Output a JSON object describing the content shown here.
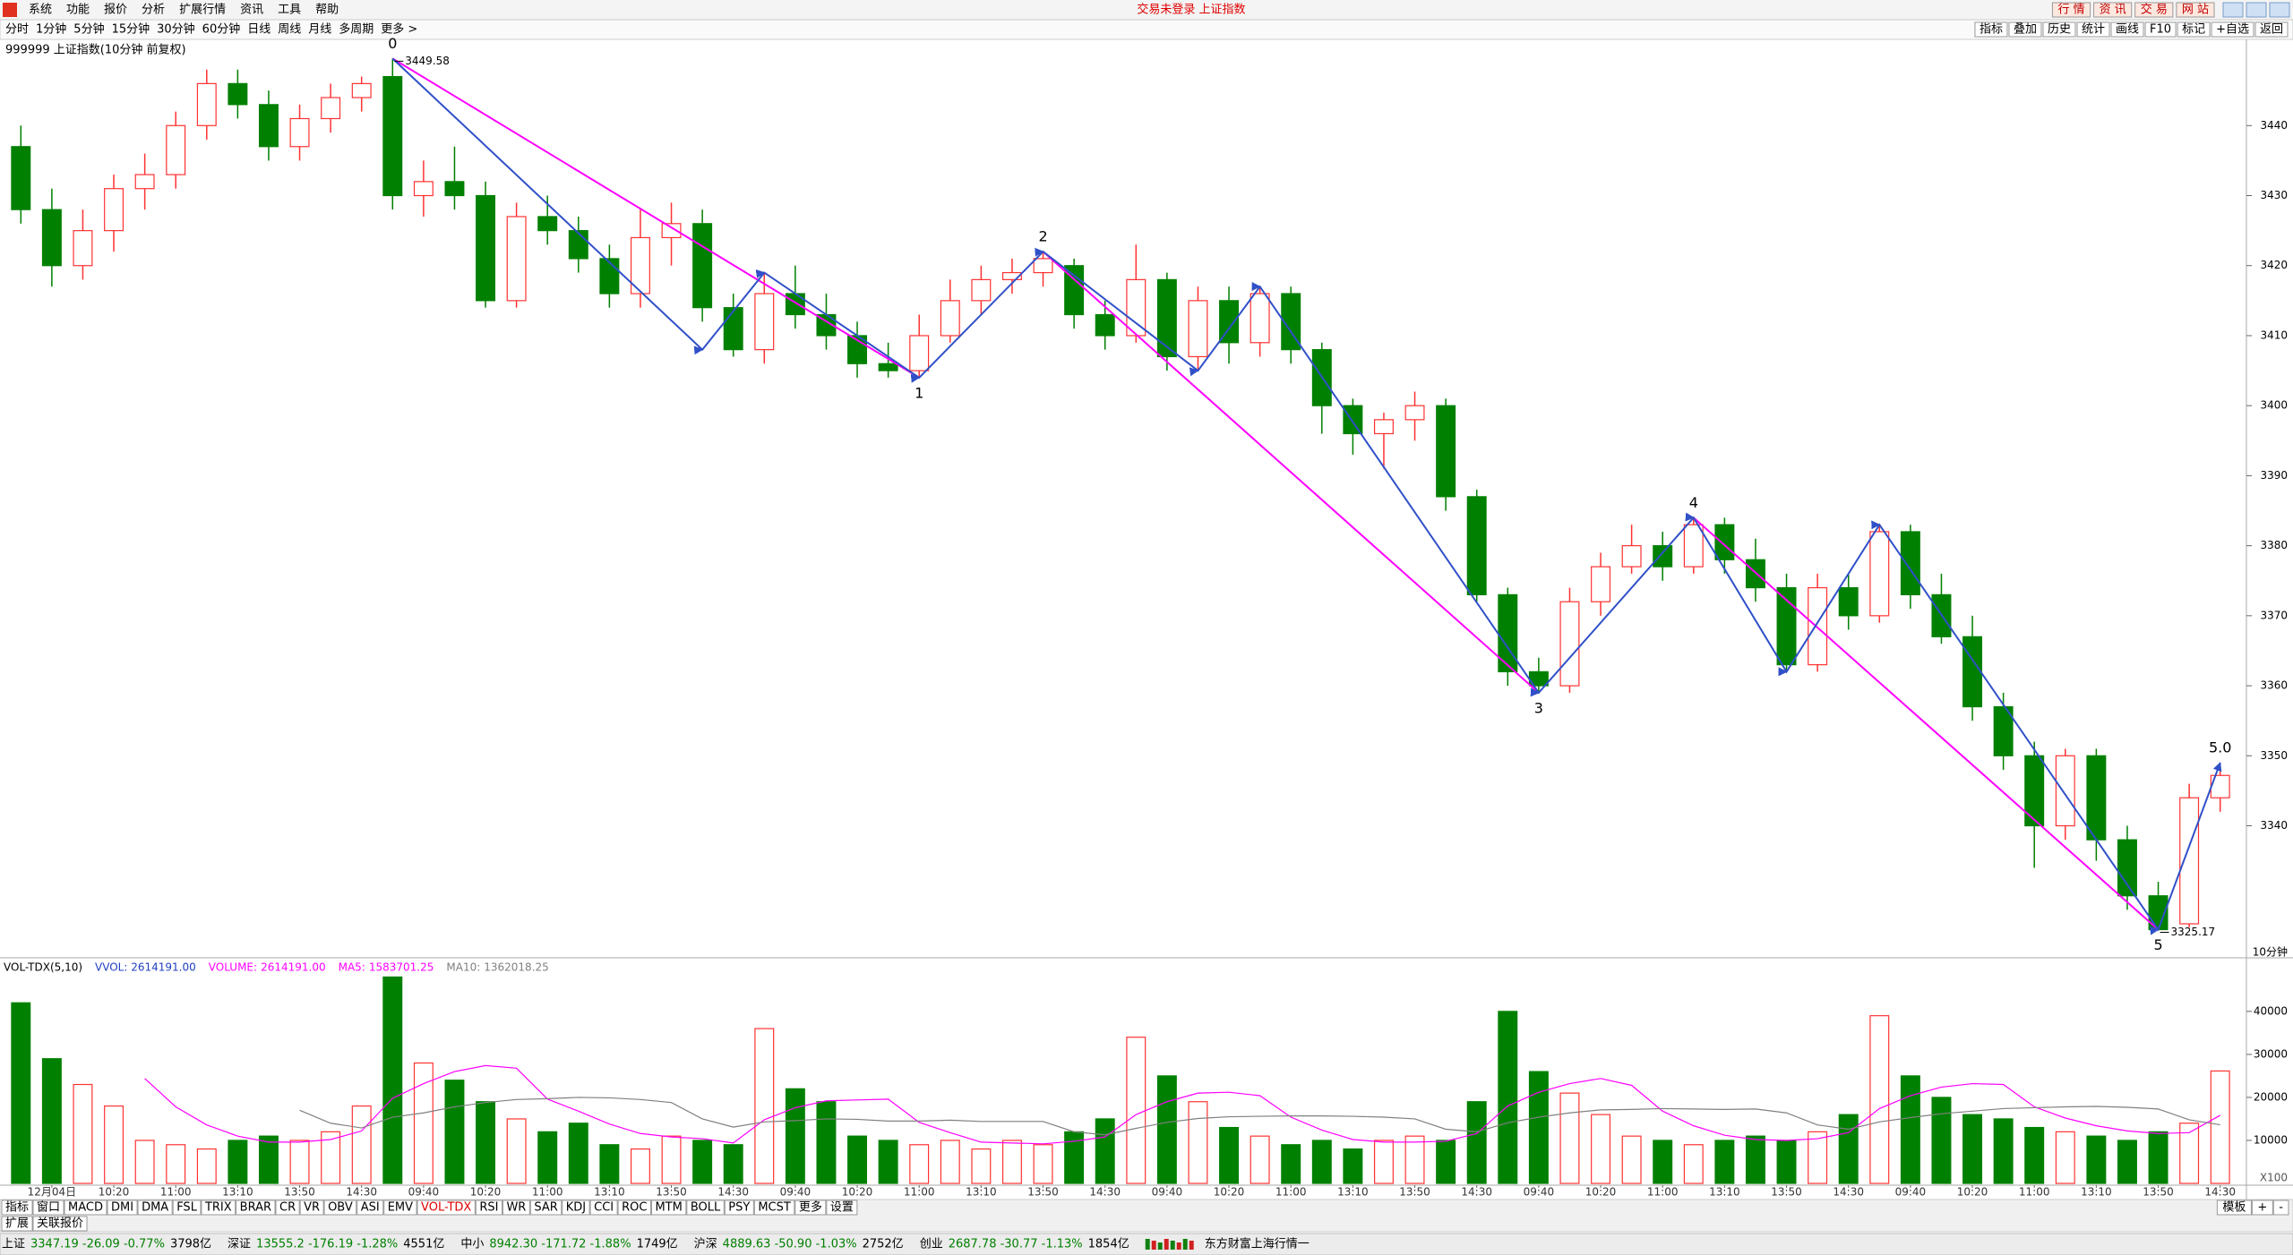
{
  "menu": [
    "系统",
    "功能",
    "报价",
    "分析",
    "扩展行情",
    "资讯",
    "工具",
    "帮助"
  ],
  "window_title": "交易未登录 上证指数",
  "top_buttons": [
    "行 情",
    "资 讯",
    "交 易",
    "网 站"
  ],
  "periods": [
    "分时",
    "1分钟",
    "5分钟",
    "15分钟",
    "30分钟",
    "60分钟",
    "日线",
    "周线",
    "月线",
    "多周期",
    "更多 >"
  ],
  "tools": [
    "指标",
    "叠加",
    "历史",
    "统计",
    "画线",
    "F10",
    "标记",
    "+自选",
    "返回"
  ],
  "chart_header": "999999 上证指数(10分钟 前复权)",
  "chart_data": [
    {
      "type": "candlestick",
      "open": [
        3437,
        3428,
        3420,
        3425,
        3431,
        3433,
        3440,
        3446,
        3443,
        3437,
        3441,
        3444,
        3447,
        3430,
        3432,
        3430,
        3415,
        3427,
        3425,
        3421,
        3416,
        3424,
        3426,
        3414,
        3408,
        3416,
        3413,
        3410,
        3406,
        3405,
        3410,
        3415,
        3418,
        3419,
        3420,
        3413,
        3410,
        3418,
        3407,
        3415,
        3409,
        3416,
        3408,
        3400,
        3396,
        3398,
        3400,
        3387,
        3373,
        3362,
        3360,
        3372,
        3377,
        3380,
        3377,
        3383,
        3378,
        3374,
        3363,
        3374,
        3370,
        3382,
        3373,
        3367,
        3357,
        3350,
        3340,
        3350,
        3338,
        3330,
        3326,
        3344
      ],
      "close": [
        3428,
        3420,
        3425,
        3431,
        3433,
        3440,
        3446,
        3443,
        3437,
        3441,
        3444,
        3446,
        3430,
        3432,
        3430,
        3415,
        3427,
        3425,
        3421,
        3416,
        3424,
        3426,
        3414,
        3408,
        3416,
        3413,
        3410,
        3406,
        3405,
        3410,
        3415,
        3418,
        3419,
        3421,
        3413,
        3410,
        3418,
        3407,
        3415,
        3409,
        3416,
        3408,
        3400,
        3396,
        3398,
        3400,
        3387,
        3373,
        3362,
        3360,
        3372,
        3377,
        3380,
        3377,
        3383,
        3378,
        3374,
        3363,
        3374,
        3370,
        3382,
        3373,
        3367,
        3357,
        3350,
        3340,
        3350,
        3338,
        3330,
        3325.17,
        3344,
        3347.19
      ],
      "high": [
        3440,
        3431,
        3428,
        3433,
        3436,
        3442,
        3448,
        3448,
        3445,
        3443,
        3446,
        3447,
        3449.58,
        3435,
        3437,
        3432,
        3429,
        3430,
        3427,
        3423,
        3428,
        3429,
        3428,
        3416,
        3419,
        3420,
        3416,
        3412,
        3409,
        3413,
        3418,
        3420,
        3421,
        3422,
        3421,
        3415,
        3423,
        3419,
        3417,
        3417,
        3417,
        3417,
        3409,
        3401,
        3399,
        3402,
        3401,
        3388,
        3374,
        3364,
        3374,
        3379,
        3383,
        3382,
        3384,
        3384,
        3381,
        3376,
        3376,
        3376,
        3383,
        3383,
        3376,
        3370,
        3359,
        3352,
        3351,
        3351,
        3340,
        3332,
        3346,
        3349
      ],
      "low": [
        3426,
        3417,
        3418,
        3422,
        3428,
        3431,
        3438,
        3441,
        3435,
        3435,
        3439,
        3442,
        3428,
        3427,
        3428,
        3414,
        3414,
        3423,
        3419,
        3414,
        3414,
        3420,
        3412,
        3407,
        3406,
        3411,
        3408,
        3404,
        3404,
        3404,
        3409,
        3413,
        3416,
        3417,
        3411,
        3408,
        3409,
        3405,
        3405,
        3406,
        3407,
        3406,
        3396,
        3393,
        3391,
        3395,
        3385,
        3372,
        3360,
        3359,
        3359,
        3370,
        3376,
        3375,
        3376,
        3376,
        3372,
        3362,
        3362,
        3368,
        3369,
        3371,
        3366,
        3355,
        3348,
        3334,
        3338,
        3335,
        3328,
        3325.17,
        3325.5,
        3342
      ],
      "up_color": "#ff3232",
      "down_color": "#008000",
      "ylim": [
        3321.4,
        3451.8
      ],
      "yticks": [
        3340,
        3350,
        3360,
        3370,
        3380,
        3390,
        3400,
        3410,
        3420,
        3430,
        3440
      ],
      "waves": [
        {
          "color": "#ff00ff",
          "x": [
            12,
            29
          ],
          "y": [
            3449.58,
            3404
          ]
        },
        {
          "color": "#ff00ff",
          "x": [
            33,
            49
          ],
          "y": [
            3422,
            3359
          ]
        },
        {
          "color": "#ff00ff",
          "x": [
            54,
            69
          ],
          "y": [
            3384,
            3325.17
          ]
        },
        {
          "color": "#3050c8",
          "x": [
            12,
            22,
            24,
            29,
            33,
            38,
            40,
            49,
            54,
            57,
            60,
            69,
            71
          ],
          "y": [
            3449.58,
            3408,
            3419,
            3404,
            3422,
            3405,
            3417,
            3359,
            3384,
            3362,
            3383,
            3325.17,
            3349
          ]
        }
      ],
      "wave_labels": [
        {
          "text": "0",
          "x": 12,
          "y": 3449.58
        },
        {
          "text": "1",
          "x": 29,
          "y": 3404
        },
        {
          "text": "2",
          "x": 33,
          "y": 3422
        },
        {
          "text": "3",
          "x": 49,
          "y": 3359
        },
        {
          "text": "4",
          "x": 54,
          "y": 3384
        },
        {
          "text": "5",
          "x": 69,
          "y": 3325.17
        },
        {
          "text": "5.0",
          "x": 71,
          "y": 3349
        }
      ],
      "price_labels": [
        {
          "x": 12,
          "value": 3449.58
        },
        {
          "x": 69,
          "value": 3325.17
        }
      ],
      "period_label": "10分钟"
    },
    {
      "type": "bar",
      "title": "VOL-TDX(5,10)",
      "vvol": "VVOL: 2614191.00",
      "categories": [
        null,
        "12月04日",
        null,
        "10:20",
        null,
        "11:00",
        null,
        "13:10",
        null,
        "13:50",
        null,
        "14:30",
        null,
        "09:40",
        null,
        "10:20",
        null,
        "11:00",
        null,
        "13:10",
        null,
        "13:50",
        null,
        "14:30",
        null,
        "09:40",
        null,
        "10:20",
        null,
        "11:00",
        null,
        "13:10",
        null,
        "13:50",
        null,
        "14:30",
        null,
        "09:40",
        null,
        "10:20",
        null,
        "11:00",
        null,
        "13:10",
        null,
        "13:50",
        null,
        "14:30",
        null,
        "09:40",
        null,
        "10:20",
        null,
        "11:00",
        null,
        "13:10",
        null,
        "13:50",
        null,
        "14:30",
        null,
        "09:40",
        null,
        "10:20",
        null,
        "11:00",
        null,
        "13:10",
        null,
        "13:50",
        null,
        "14:30"
      ],
      "series": [
        {
          "name": "VOLUME:",
          "color": "#ff00ff",
          "legend_value": "2614191.00",
          "values": [
            42000,
            29000,
            23000,
            18000,
            10000,
            9000,
            8000,
            10000,
            11000,
            10000,
            12000,
            18000,
            48000,
            28000,
            24000,
            19000,
            15000,
            12000,
            14000,
            9000,
            8000,
            11000,
            10000,
            9000,
            36000,
            22000,
            19000,
            11000,
            10000,
            9000,
            10000,
            8000,
            10000,
            9000,
            12000,
            15000,
            34000,
            25000,
            19000,
            13000,
            11000,
            9000,
            10000,
            8000,
            10000,
            11000,
            10000,
            19000,
            40000,
            26000,
            21000,
            16000,
            11000,
            10000,
            9000,
            10000,
            11000,
            10000,
            12000,
            16000,
            39000,
            25000,
            20000,
            16000,
            15000,
            13000,
            12000,
            11000,
            10000,
            12000,
            14000,
            26142
          ]
        },
        {
          "name": "MA5:",
          "color": "#ff00ff",
          "legend_value": "1583701.25",
          "values": [
            null,
            null,
            null,
            null,
            24400,
            17800,
            13600,
            11000,
            9600,
            9600,
            10200,
            12200,
            19800,
            23200,
            26000,
            27400,
            26800,
            19600,
            16800,
            13800,
            11600,
            10800,
            10400,
            9400,
            14800,
            17600,
            19200,
            19400,
            19600,
            14200,
            11800,
            9600,
            9400,
            9200,
            9800,
            10800,
            16000,
            19000,
            21000,
            21200,
            20400,
            15400,
            12400,
            10200,
            9600,
            9600,
            9800,
            11600,
            18000,
            21200,
            23200,
            24400,
            22800,
            16800,
            13400,
            11200,
            10200,
            10000,
            10400,
            11800,
            17400,
            20400,
            22400,
            23200,
            23000,
            17800,
            15200,
            13400,
            12200,
            11600,
            11800,
            15837
          ]
        },
        {
          "name": "MA10:",
          "color": "#808080",
          "legend_value": "1362018.25",
          "values": [
            null,
            null,
            null,
            null,
            null,
            null,
            null,
            null,
            null,
            17000,
            14000,
            12900,
            15400,
            16400,
            17800,
            18800,
            19500,
            19700,
            20000,
            19900,
            19500,
            18800,
            15000,
            13100,
            14300,
            14600,
            15000,
            14900,
            14500,
            14500,
            14700,
            14400,
            14400,
            14400,
            12000,
            11300,
            12800,
            14200,
            15100,
            15500,
            15600,
            15700,
            15700,
            15600,
            15400,
            15000,
            12600,
            12000,
            14100,
            15400,
            16400,
            17100,
            17200,
            17400,
            17300,
            17200,
            17300,
            16400,
            13600,
            12600,
            14300,
            15300,
            16200,
            16800,
            17400,
            17600,
            17800,
            17900,
            17700,
            17300,
            14800,
            13620
          ]
        }
      ],
      "ylim": [
        0,
        48300
      ],
      "yticks": [
        10000,
        20000,
        30000,
        40000
      ],
      "unit_label": "X100"
    }
  ],
  "indicator_tabs": [
    "指标",
    "窗口",
    "MACD",
    "DMI",
    "DMA",
    "FSL",
    "TRIX",
    "BRAR",
    "CR",
    "VR",
    "OBV",
    "ASI",
    "EMV",
    "VOL-TDX",
    "RSI",
    "WR",
    "SAR",
    "KDJ",
    "CCI",
    "ROC",
    "MTM",
    "BOLL",
    "PSY",
    "MCST",
    "更多",
    "设置"
  ],
  "active_tab": 13,
  "template_tabs": [
    "模板",
    "+",
    "-"
  ],
  "sub_tabs": [
    "扩展",
    "关联报价"
  ],
  "status": [
    {
      "name": "上证",
      "quote": "3347.19 -26.09 -0.77%",
      "amount": "3798亿"
    },
    {
      "name": "深证",
      "quote": "13555.2 -176.19 -1.28%",
      "amount": "4551亿"
    },
    {
      "name": "中小",
      "quote": "8942.30 -171.72 -1.88%",
      "amount": "1749亿"
    },
    {
      "name": "沪深",
      "quote": "4889.63 -50.90 -1.03%",
      "amount": "2752亿"
    },
    {
      "name": "创业",
      "quote": "2687.78 -30.77 -1.13%",
      "amount": "1854亿"
    }
  ],
  "status_right": "东方财富上海行情一"
}
